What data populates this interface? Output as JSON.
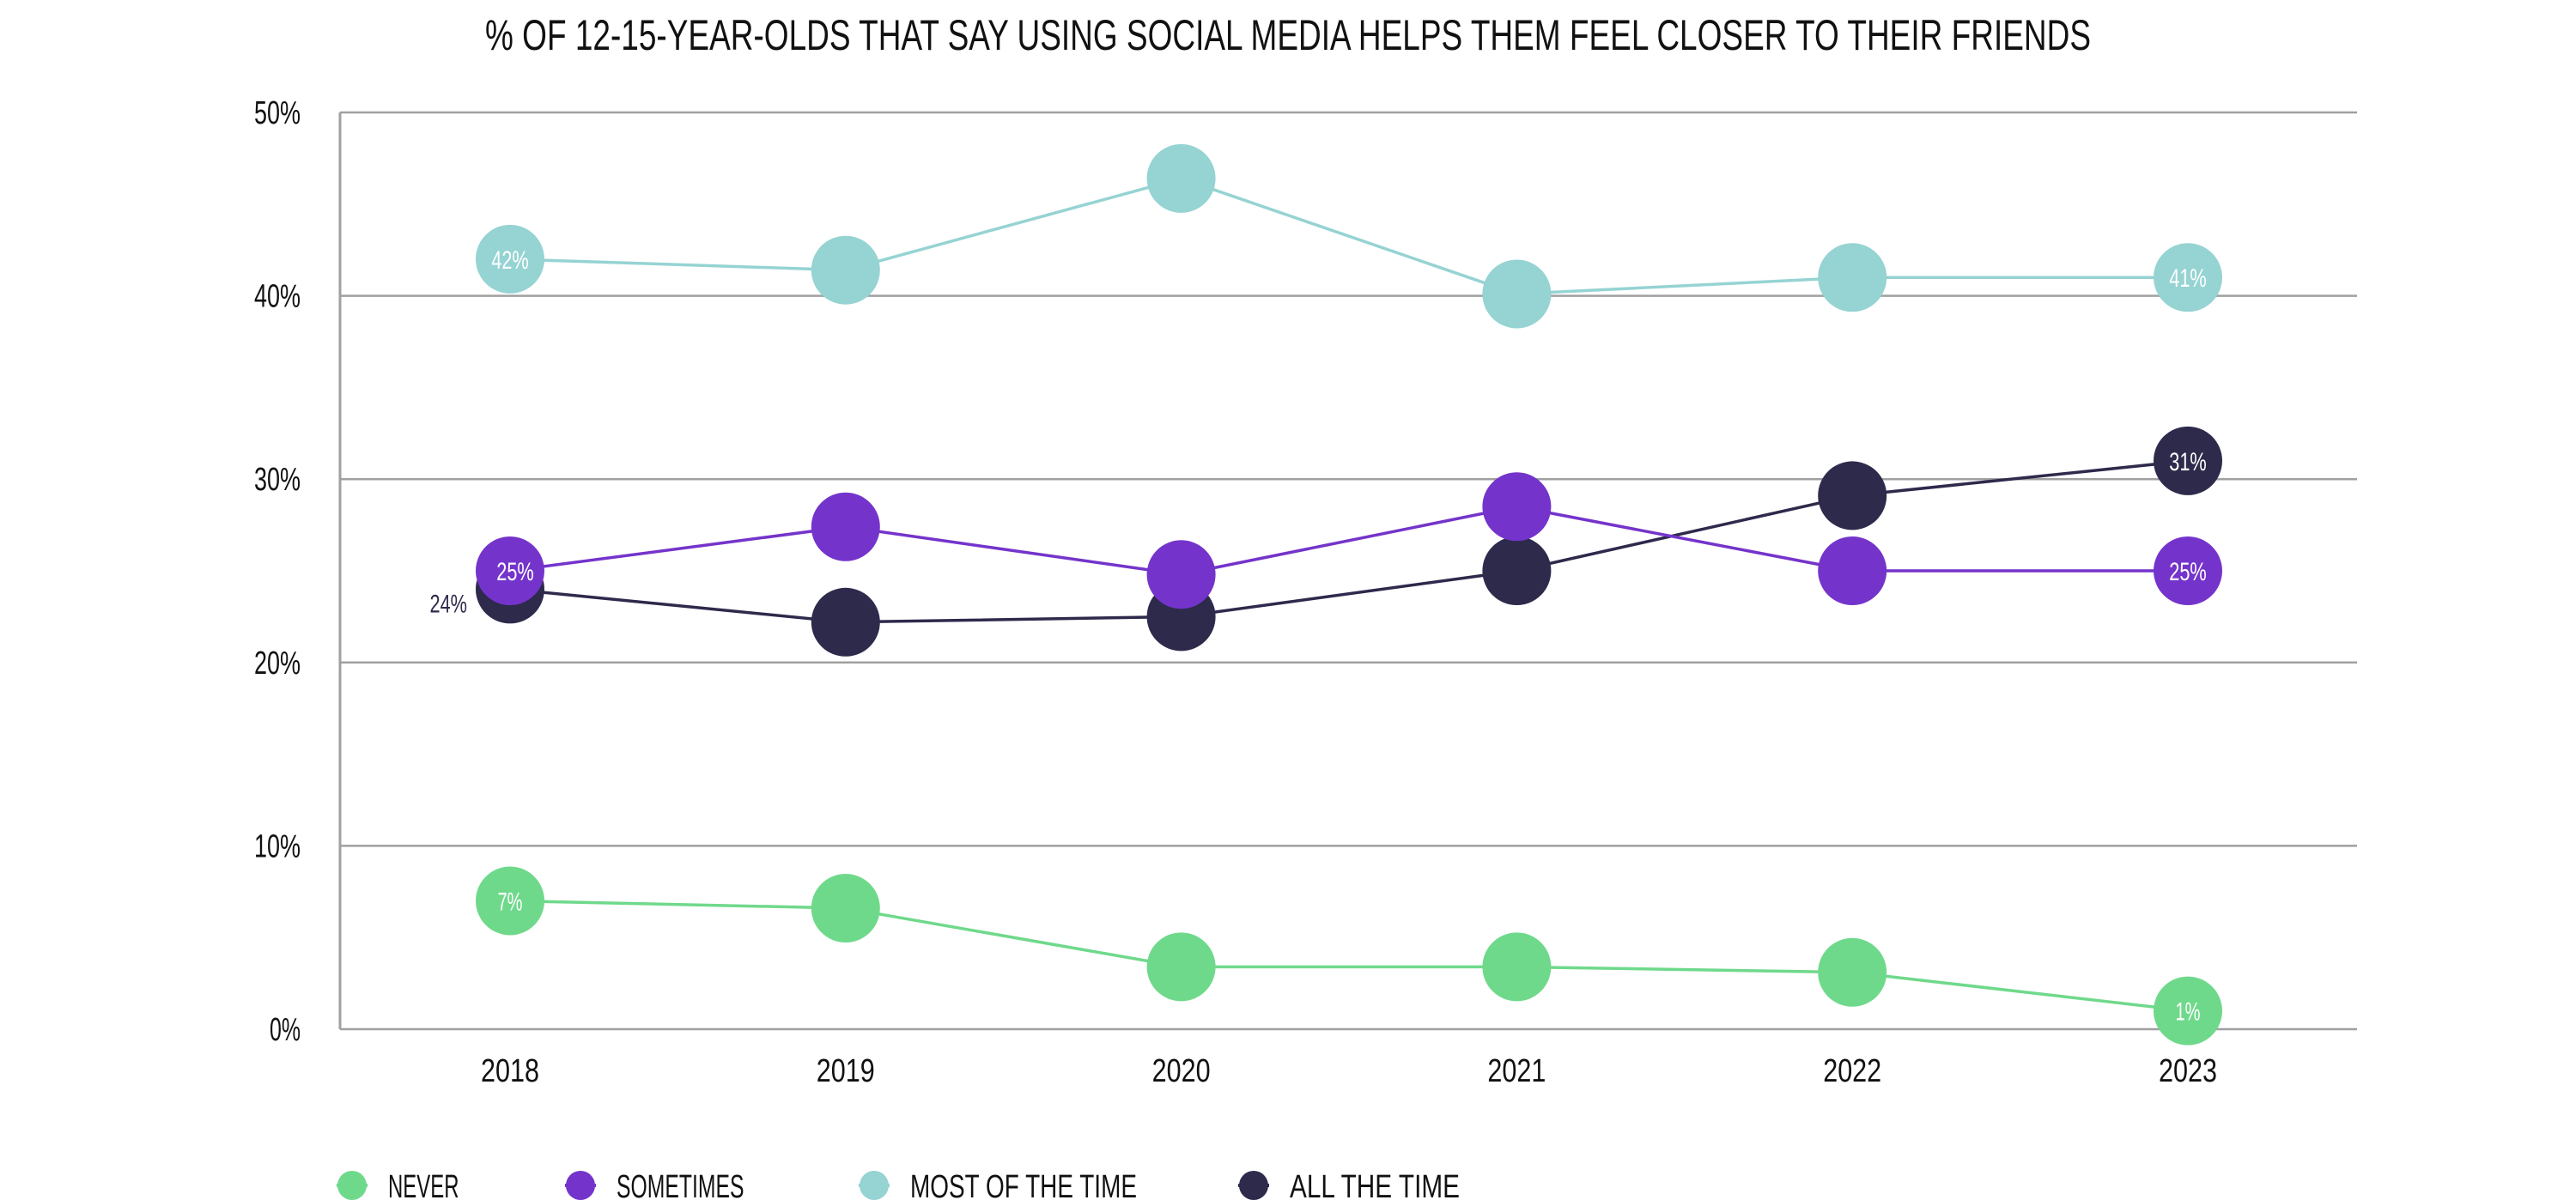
{
  "chart_data": {
    "type": "line",
    "title": "% OF 12-15-YEAR-OLDS THAT SAY USING SOCIAL MEDIA HELPS THEM FEEL CLOSER TO THEIR FRIENDS",
    "xlabel": "",
    "ylabel": "",
    "x": [
      "2018",
      "2019",
      "2020",
      "2021",
      "2022",
      "2023"
    ],
    "ylim": [
      0,
      50
    ],
    "yticks": [
      0,
      10,
      20,
      30,
      40,
      50
    ],
    "ytick_labels": [
      "0%",
      "10%",
      "20%",
      "30%",
      "40%",
      "50%"
    ],
    "grid": true,
    "legend_position": "bottom-left",
    "series": [
      {
        "name": "NEVER",
        "color": "#6fd98b",
        "values": [
          7,
          6.6,
          3.4,
          3.4,
          3.1,
          1
        ],
        "labels": {
          "0": "7%",
          "5": "1%"
        }
      },
      {
        "name": "SOMETIMES",
        "color": "#7434cb",
        "values": [
          25,
          27.4,
          24.8,
          28.5,
          25,
          25
        ],
        "labels": {
          "0": "25%",
          "5": "25%"
        }
      },
      {
        "name": "MOST OF THE TIME",
        "color": "#96d3d3",
        "values": [
          42,
          41.4,
          46.4,
          40.1,
          41,
          41
        ],
        "labels": {
          "0": "42%",
          "5": "41%"
        }
      },
      {
        "name": "ALL THE TIME",
        "color": "#2d2a4c",
        "values": [
          24,
          22.2,
          22.5,
          25,
          29.1,
          31
        ],
        "labels": {
          "0": "24%",
          "5": "31%"
        },
        "outside_label_index": 0
      }
    ],
    "draw_order": [
      3,
      0,
      1,
      2
    ]
  }
}
